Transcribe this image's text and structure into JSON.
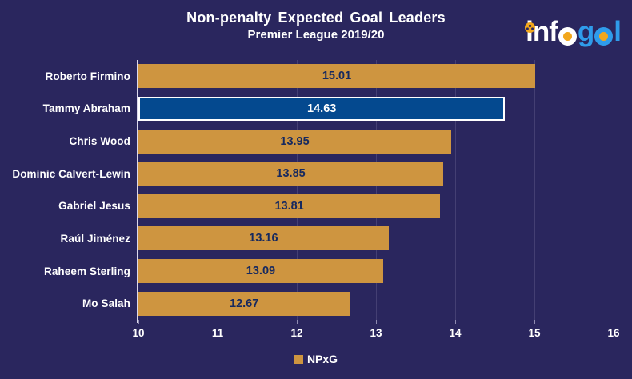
{
  "header": {
    "title": "Non-penalty Expected Goal Leaders",
    "subtitle": "Premier League 2019/20"
  },
  "logo": {
    "brand": "infogol",
    "part_inf": "inf",
    "part_g": "g",
    "part_l": "l"
  },
  "chart_data": {
    "type": "bar",
    "orientation": "horizontal",
    "categories": [
      "Roberto Firmino",
      "Tammy Abraham",
      "Chris Wood",
      "Dominic Calvert-Lewin",
      "Gabriel Jesus",
      "Raúl Jiménez",
      "Raheem Sterling",
      "Mo Salah"
    ],
    "values": [
      15.01,
      14.63,
      13.95,
      13.85,
      13.81,
      13.16,
      13.09,
      12.67
    ],
    "value_labels": [
      "15.01",
      "14.63",
      "13.95",
      "13.85",
      "13.81",
      "13.16",
      "13.09",
      "12.67"
    ],
    "highlighted_category": "Tammy Abraham",
    "xlim": [
      10,
      16
    ],
    "xticks": [
      "10",
      "11",
      "12",
      "13",
      "14",
      "15",
      "16"
    ],
    "grid": true,
    "legend": [
      {
        "label": "NPxG",
        "color": "#ce9540"
      }
    ],
    "colors": {
      "background": "#2a265e",
      "bar": "#ce9540",
      "highlight_bar": "#04498f",
      "highlight_border": "#ffffff",
      "value_label": "#16295f",
      "value_label_highlight": "#ffffff",
      "axis_text": "#ffffff",
      "logo_blue": "#2f9ceb",
      "logo_orange": "#f2a71b"
    }
  }
}
